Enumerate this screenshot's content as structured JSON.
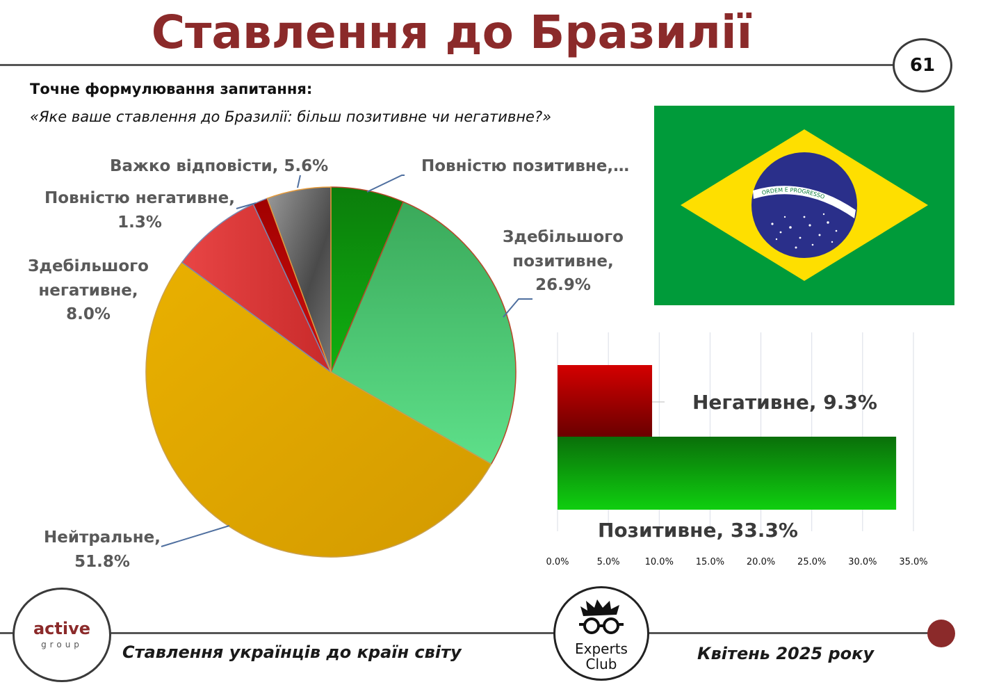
{
  "header": {
    "title": "Ставлення до Бразилії",
    "page_number": "61"
  },
  "question": {
    "heading": "Точне формулювання запитання:",
    "text": "«Яке ваше ставлення до Бразилії: більш позитивне чи негативне?»"
  },
  "flag": {
    "motto": "ORDEM E PROGRESSO",
    "colors": {
      "green": "#009b3a",
      "yellow": "#fedf00",
      "blue": "#002776"
    }
  },
  "chart_data": [
    {
      "type": "pie",
      "slices": [
        {
          "name": "Повністю позитивне",
          "value": 6.4,
          "label_lines": [
            "Повністю позитивне,…"
          ],
          "color": "#0a8f0a"
        },
        {
          "name": "Здебільшого позитивне",
          "value": 26.9,
          "label_lines": [
            "Здебільшого",
            "позитивне,",
            "26.9%"
          ],
          "color": "#48c86a"
        },
        {
          "name": "Нейтральне",
          "value": 51.8,
          "label_lines": [
            "Нейтральне,",
            "51.8%"
          ],
          "color": "#e6a800"
        },
        {
          "name": "Здебільшого негативне",
          "value": 8.0,
          "label_lines": [
            "Здебільшого",
            "негативне,",
            "8.0%"
          ],
          "color": "#e03c3c"
        },
        {
          "name": "Повністю негативне",
          "value": 1.3,
          "label_lines": [
            "Повністю негативне,",
            "1.3%"
          ],
          "color": "#a00000"
        },
        {
          "name": "Важко відповісти",
          "value": 5.6,
          "label_lines": [
            "Важко відповісти, 5.6%"
          ],
          "color": "#6a6a6a"
        }
      ]
    },
    {
      "type": "bar",
      "orientation": "horizontal",
      "categories": [
        "Негативне",
        "Позитивне"
      ],
      "values": [
        9.3,
        33.3
      ],
      "data_labels": [
        "Негативне, 9.3%",
        "Позитивне, 33.3%"
      ],
      "colors": [
        "#c40000",
        "#119a11"
      ],
      "xlim": [
        0,
        35
      ],
      "x_ticks": [
        "0.0%",
        "5.0%",
        "10.0%",
        "15.0%",
        "20.0%",
        "25.0%",
        "30.0%",
        "35.0%"
      ],
      "grid": true
    }
  ],
  "footer": {
    "left_logo": {
      "word": "active",
      "sub": "group"
    },
    "center_logo": {
      "line1": "Experts",
      "line2": "Club"
    },
    "title": "Ставлення українців до країн світу",
    "date": "Квітень 2025 року"
  }
}
